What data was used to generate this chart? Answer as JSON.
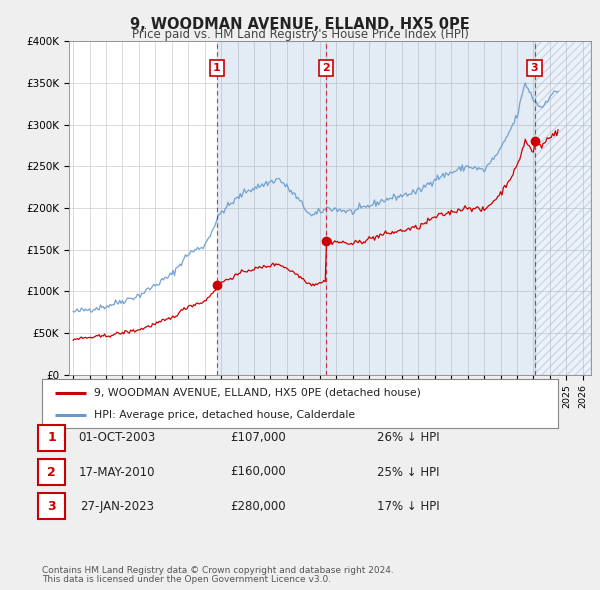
{
  "title": "9, WOODMAN AVENUE, ELLAND, HX5 0PE",
  "subtitle": "Price paid vs. HM Land Registry's House Price Index (HPI)",
  "legend_line1": "9, WOODMAN AVENUE, ELLAND, HX5 0PE (detached house)",
  "legend_line2": "HPI: Average price, detached house, Calderdale",
  "red_color": "#cc0000",
  "blue_color": "#6699cc",
  "shade_color": "#ddeeff",
  "footnote1": "Contains HM Land Registry data © Crown copyright and database right 2024.",
  "footnote2": "This data is licensed under the Open Government Licence v3.0.",
  "transactions": [
    {
      "num": 1,
      "x_year": 2003.75,
      "price": 107000
    },
    {
      "num": 2,
      "x_year": 2010.375,
      "price": 160000
    },
    {
      "num": 3,
      "x_year": 2023.07,
      "price": 280000
    }
  ],
  "table_rows": [
    {
      "num": 1,
      "date_str": "01-OCT-2003",
      "price_str": "£107,000",
      "pct_str": "26% ↓ HPI"
    },
    {
      "num": 2,
      "date_str": "17-MAY-2010",
      "price_str": "£160,000",
      "pct_str": "25% ↓ HPI"
    },
    {
      "num": 3,
      "date_str": "27-JAN-2023",
      "price_str": "£280,000",
      "pct_str": "17% ↓ HPI"
    }
  ],
  "ylim": [
    0,
    400000
  ],
  "yticks": [
    0,
    50000,
    100000,
    150000,
    200000,
    250000,
    300000,
    350000,
    400000
  ],
  "ytick_labels": [
    "£0",
    "£50K",
    "£100K",
    "£150K",
    "£200K",
    "£250K",
    "£300K",
    "£350K",
    "£400K"
  ],
  "xlim_start": 1994.75,
  "xlim_end": 2026.5,
  "background_color": "#efefef",
  "plot_bg_color": "#ffffff"
}
